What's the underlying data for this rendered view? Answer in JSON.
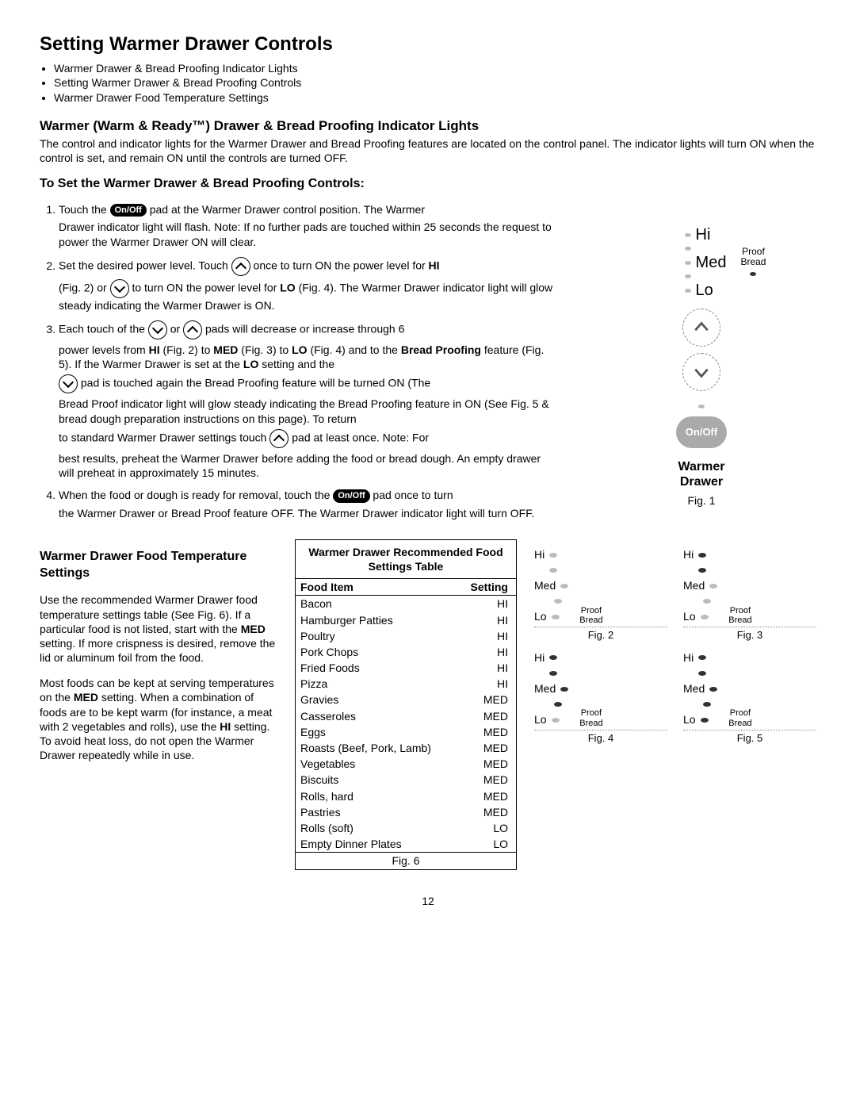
{
  "title": "Setting Warmer Drawer Controls",
  "top_bullets": [
    "Warmer Drawer & Bread Proofing Indicator Lights",
    "Setting Warmer Drawer & Bread Proofing Controls",
    "Warmer Drawer Food Temperature Settings"
  ],
  "section1": {
    "heading": "Warmer (Warm & Ready™) Drawer & Bread Proofing Indicator Lights",
    "body": "The control and indicator lights for the Warmer Drawer and Bread Proofing features are located on the control panel. The indicator lights will turn ON when the control is set, and remain ON until the controls are turned OFF."
  },
  "section2": {
    "heading": "To Set the Warmer Drawer & Bread Proofing Controls:"
  },
  "onoff_label": "On/Off",
  "steps": {
    "s1a": "Touch the ",
    "s1b": " pad at the Warmer Drawer control position. The Warmer",
    "s1c": "Drawer indicator light will flash. Note: If no further pads are touched within 25 seconds the request to power the Warmer Drawer ON will clear.",
    "s2a": "Set the desired power level. Touch ",
    "s2b": " once to turn ON the power level for ",
    "s2hi": "HI",
    "s2c": "(Fig. 2) or ",
    "s2d": " to turn ON the power level for ",
    "s2lo": "LO",
    "s2e": " (Fig. 4). The Warmer Drawer indicator light will glow steady indicating the Warmer Drawer is ON.",
    "s3a": "Each touch of the ",
    "s3b": " or ",
    "s3c": " pads will decrease or increase through 6",
    "s3d": "power levels from ",
    "s3e": " (Fig. 2) to ",
    "s3med": "MED",
    "s3f": " (Fig. 3) to ",
    "s3lo": "LO",
    "s3g": " (Fig. 4) and to the ",
    "s3bp": "Bread Proofing",
    "s3h": " feature (Fig. 5). If the Warmer Drawer is set at the ",
    "s3i": " setting and the",
    "s3j": " pad is touched again the Bread Proofing feature will be turned ON (The",
    "s3k": "Bread Proof indicator light will glow steady indicating the Bread Proofing feature in ON (See Fig. 5 & bread dough preparation instructions on this page). To return",
    "s3l": "to standard Warmer Drawer settings touch ",
    "s3m": " pad at least once. Note: For",
    "s3n": "best results, preheat the Warmer Drawer before adding the food or bread dough. An empty drawer will preheat in approximately 15 minutes.",
    "s4a": "When the food or dough is ready for removal, touch the ",
    "s4b": " pad once to turn",
    "s4c": "the Warmer Drawer or Bread Proof feature OFF. The Warmer Drawer indicator light will turn OFF."
  },
  "panel": {
    "hi": "Hi",
    "med": "Med",
    "lo": "Lo",
    "proof": "Proof",
    "bread": "Bread",
    "onoff": "On/Off",
    "caption1": "Warmer",
    "caption2": "Drawer",
    "fig": "Fig. 1"
  },
  "section3": {
    "heading": "Warmer Drawer Food Temperature Settings",
    "p1a": "Use the recommended Warmer Drawer food temperature settings table (See Fig. 6). If a particular food is not listed, start with the ",
    "med": "MED",
    "p1b": " setting. If more crispness is desired, remove the lid or aluminum foil from the food.",
    "p2a": "Most foods can be kept at serving temperatures on the ",
    "p2b": " setting. When a combination of foods are to be kept warm (for instance, a meat with 2 vegetables and rolls), use the ",
    "hi": "HI",
    "p2c": " setting. To avoid heat loss, do not open the Warmer Drawer repeatedly while in use."
  },
  "table": {
    "title": "Warmer Drawer Recommended Food Settings Table",
    "col1": "Food Item",
    "col2": "Setting",
    "rows": [
      [
        "Bacon",
        "HI"
      ],
      [
        "Hamburger Patties",
        "HI"
      ],
      [
        "Poultry",
        "HI"
      ],
      [
        "Pork Chops",
        "HI"
      ],
      [
        "Fried Foods",
        "HI"
      ],
      [
        "Pizza",
        "HI"
      ],
      [
        "Gravies",
        "MED"
      ],
      [
        "Casseroles",
        "MED"
      ],
      [
        "Eggs",
        "MED"
      ],
      [
        "Roasts (Beef, Pork, Lamb)",
        "MED"
      ],
      [
        "Vegetables",
        "MED"
      ],
      [
        "Biscuits",
        "MED"
      ],
      [
        "Rolls, hard",
        "MED"
      ],
      [
        "Pastries",
        "MED"
      ],
      [
        "Rolls (soft)",
        "LO"
      ],
      [
        "Empty Dinner Plates",
        "LO"
      ]
    ],
    "fig": "Fig. 6"
  },
  "mini": {
    "hi": "Hi",
    "med": "Med",
    "lo": "Lo",
    "proof": "Proof",
    "bread": "Bread",
    "fig2": "Fig. 2",
    "fig3": "Fig. 3",
    "fig4": "Fig. 4",
    "fig5": "Fig. 5"
  },
  "page": "12"
}
